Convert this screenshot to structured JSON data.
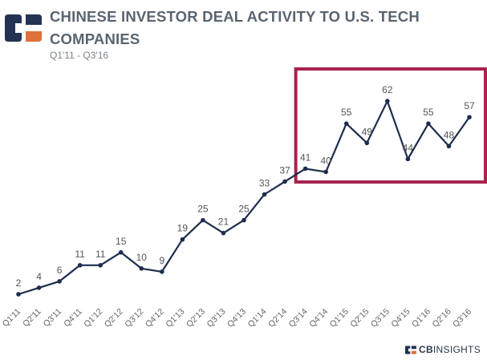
{
  "header": {
    "title_line1": "CHINESE INVESTOR DEAL ACTIVITY TO U.S. TECH",
    "title_line2": "COMPANIES",
    "subtitle": "Q1'11 - Q3'16"
  },
  "brand": {
    "logo_icon": "cb-insights-logo-icon",
    "footer_bold": "CB",
    "footer_light": "INSIGHTS"
  },
  "colors": {
    "line": "#1e2d4d",
    "highlight_box": "#a8234e",
    "logo_dark": "#243353",
    "logo_accent": "#e0713a",
    "text": "#555555",
    "tick_text": "#666666"
  },
  "chart_data": {
    "type": "line",
    "title": "CHINESE INVESTOR DEAL ACTIVITY TO U.S. TECH COMPANIES",
    "subtitle": "Q1'11 - Q3'16",
    "xlabel": "",
    "ylabel": "",
    "grid": false,
    "legend": "none",
    "categories": [
      "Q1'11",
      "Q2'11",
      "Q3'11",
      "Q4'11",
      "Q1'12",
      "Q2'12",
      "Q3'12",
      "Q4'12",
      "Q1'13",
      "Q2'13",
      "Q3'13",
      "Q4'13",
      "Q1'14",
      "Q2'14",
      "Q3'14",
      "Q4'14",
      "Q1'15",
      "Q2'15",
      "Q3'15",
      "Q4'15",
      "Q1'16",
      "Q2'16",
      "Q3'16"
    ],
    "series": [
      {
        "values": [
          2,
          4,
          6,
          11,
          11,
          15,
          10,
          9,
          19,
          25,
          21,
          25,
          33,
          37,
          41,
          40,
          55,
          49,
          62,
          44,
          55,
          48,
          57
        ]
      }
    ],
    "highlight": {
      "from": "Q3'14",
      "to": "Q3'16"
    }
  }
}
